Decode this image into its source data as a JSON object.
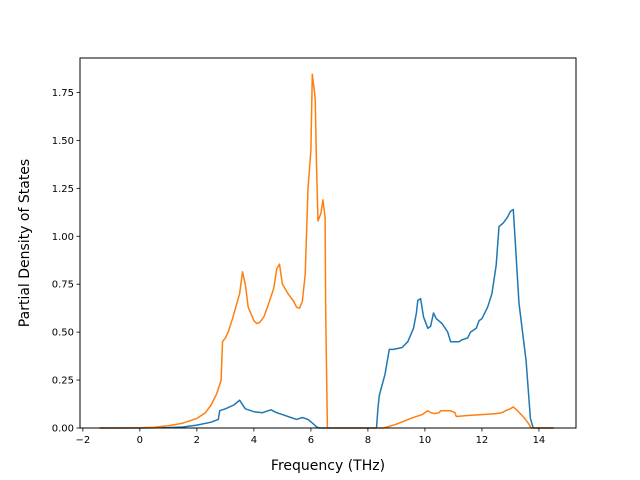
{
  "chart_data": {
    "type": "line",
    "title": "",
    "xlabel": "Frequency (THz)",
    "ylabel": "Partial Density of States",
    "xlim": [
      -2.1,
      15.3
    ],
    "ylim": [
      0,
      1.93
    ],
    "xticks": [
      -2,
      0,
      2,
      4,
      6,
      8,
      10,
      12,
      14
    ],
    "xtick_labels": [
      "−2",
      "0",
      "2",
      "4",
      "6",
      "8",
      "10",
      "12",
      "14"
    ],
    "yticks": [
      0,
      0.25,
      0.5,
      0.75,
      1.0,
      1.25,
      1.5,
      1.75
    ],
    "ytick_labels": [
      "0.00",
      "0.25",
      "0.50",
      "0.75",
      "1.00",
      "1.25",
      "1.50",
      "1.75"
    ],
    "grid": false,
    "legend": "none",
    "series": [
      {
        "color": "#1f77b4",
        "points": [
          [
            -1.4,
            0
          ],
          [
            0.0,
            0
          ],
          [
            1.0,
            0.002
          ],
          [
            1.5,
            0.005
          ],
          [
            2.0,
            0.015
          ],
          [
            2.5,
            0.03
          ],
          [
            2.75,
            0.045
          ],
          [
            2.8,
            0.09
          ],
          [
            3.0,
            0.1
          ],
          [
            3.3,
            0.12
          ],
          [
            3.5,
            0.145
          ],
          [
            3.7,
            0.1
          ],
          [
            4.0,
            0.085
          ],
          [
            4.3,
            0.08
          ],
          [
            4.6,
            0.095
          ],
          [
            4.8,
            0.08
          ],
          [
            5.0,
            0.07
          ],
          [
            5.3,
            0.055
          ],
          [
            5.5,
            0.045
          ],
          [
            5.7,
            0.055
          ],
          [
            5.9,
            0.045
          ],
          [
            6.1,
            0.02
          ],
          [
            6.2,
            0.005
          ],
          [
            6.3,
            0
          ],
          [
            7.5,
            0
          ],
          [
            8.3,
            0
          ],
          [
            8.35,
            0.1
          ],
          [
            8.4,
            0.17
          ],
          [
            8.6,
            0.28
          ],
          [
            8.75,
            0.41
          ],
          [
            8.9,
            0.41
          ],
          [
            9.2,
            0.42
          ],
          [
            9.4,
            0.45
          ],
          [
            9.6,
            0.52
          ],
          [
            9.7,
            0.6
          ],
          [
            9.75,
            0.665
          ],
          [
            9.85,
            0.675
          ],
          [
            9.95,
            0.58
          ],
          [
            10.1,
            0.52
          ],
          [
            10.2,
            0.53
          ],
          [
            10.3,
            0.6
          ],
          [
            10.4,
            0.57
          ],
          [
            10.6,
            0.545
          ],
          [
            10.8,
            0.5
          ],
          [
            10.9,
            0.45
          ],
          [
            11.2,
            0.45
          ],
          [
            11.3,
            0.46
          ],
          [
            11.5,
            0.47
          ],
          [
            11.6,
            0.5
          ],
          [
            11.8,
            0.52
          ],
          [
            11.9,
            0.56
          ],
          [
            12.0,
            0.57
          ],
          [
            12.2,
            0.63
          ],
          [
            12.35,
            0.7
          ],
          [
            12.5,
            0.85
          ],
          [
            12.6,
            1.05
          ],
          [
            12.75,
            1.07
          ],
          [
            12.9,
            1.1
          ],
          [
            13.0,
            1.13
          ],
          [
            13.1,
            1.14
          ],
          [
            13.3,
            0.65
          ],
          [
            13.55,
            0.35
          ],
          [
            13.7,
            0.05
          ],
          [
            13.8,
            0
          ],
          [
            14.5,
            0
          ]
        ]
      },
      {
        "color": "#ff7f0e",
        "points": [
          [
            -1.4,
            0
          ],
          [
            0.0,
            0.001
          ],
          [
            0.5,
            0.004
          ],
          [
            1.0,
            0.012
          ],
          [
            1.5,
            0.025
          ],
          [
            2.0,
            0.05
          ],
          [
            2.3,
            0.08
          ],
          [
            2.5,
            0.12
          ],
          [
            2.7,
            0.18
          ],
          [
            2.85,
            0.25
          ],
          [
            2.9,
            0.45
          ],
          [
            3.0,
            0.47
          ],
          [
            3.1,
            0.5
          ],
          [
            3.25,
            0.57
          ],
          [
            3.4,
            0.65
          ],
          [
            3.5,
            0.7
          ],
          [
            3.6,
            0.815
          ],
          [
            3.7,
            0.75
          ],
          [
            3.8,
            0.63
          ],
          [
            4.0,
            0.56
          ],
          [
            4.1,
            0.545
          ],
          [
            4.2,
            0.55
          ],
          [
            4.35,
            0.58
          ],
          [
            4.5,
            0.64
          ],
          [
            4.7,
            0.73
          ],
          [
            4.8,
            0.83
          ],
          [
            4.9,
            0.855
          ],
          [
            5.0,
            0.75
          ],
          [
            5.2,
            0.7
          ],
          [
            5.4,
            0.66
          ],
          [
            5.5,
            0.63
          ],
          [
            5.6,
            0.625
          ],
          [
            5.7,
            0.66
          ],
          [
            5.8,
            0.8
          ],
          [
            5.9,
            1.25
          ],
          [
            6.0,
            1.45
          ],
          [
            6.05,
            1.845
          ],
          [
            6.15,
            1.72
          ],
          [
            6.2,
            1.35
          ],
          [
            6.25,
            1.08
          ],
          [
            6.35,
            1.12
          ],
          [
            6.42,
            1.19
          ],
          [
            6.5,
            1.1
          ],
          [
            6.52,
            0.6
          ],
          [
            6.58,
            0
          ],
          [
            7.5,
            0
          ],
          [
            8.55,
            0
          ],
          [
            9.0,
            0.02
          ],
          [
            9.5,
            0.05
          ],
          [
            9.9,
            0.07
          ],
          [
            10.1,
            0.09
          ],
          [
            10.2,
            0.08
          ],
          [
            10.35,
            0.075
          ],
          [
            10.5,
            0.08
          ],
          [
            10.55,
            0.09
          ],
          [
            10.7,
            0.09
          ],
          [
            10.9,
            0.09
          ],
          [
            11.05,
            0.08
          ],
          [
            11.1,
            0.06
          ],
          [
            11.5,
            0.065
          ],
          [
            12.0,
            0.07
          ],
          [
            12.5,
            0.075
          ],
          [
            12.7,
            0.08
          ],
          [
            12.9,
            0.095
          ],
          [
            13.0,
            0.1
          ],
          [
            13.1,
            0.11
          ],
          [
            13.25,
            0.09
          ],
          [
            13.5,
            0.05
          ],
          [
            13.65,
            0.02
          ],
          [
            13.72,
            0
          ],
          [
            14.5,
            0
          ]
        ]
      }
    ]
  }
}
